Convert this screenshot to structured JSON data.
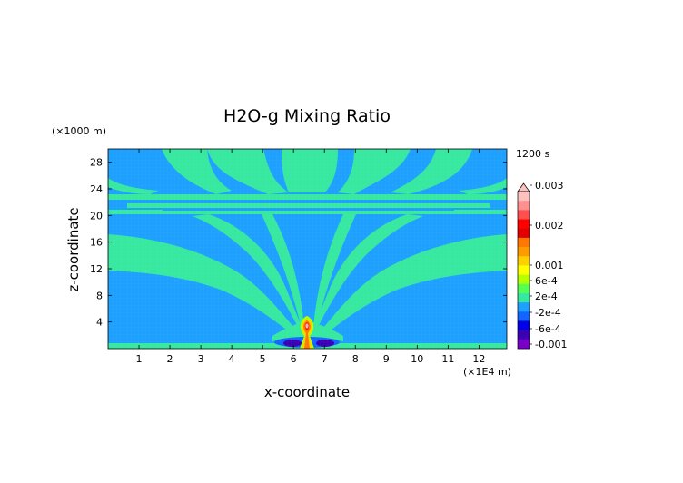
{
  "chart_data": {
    "type": "heatmap",
    "title": "H2O-g Mixing Ratio",
    "xlabel": "x-coordinate",
    "ylabel": "z-coordinate",
    "x_unit": "(×1E4 m)",
    "y_unit": "(×1000 m)",
    "time_label": "1200 s",
    "xlim": [
      0,
      12.9
    ],
    "ylim": [
      0,
      30
    ],
    "x_ticks": [
      "1",
      "2",
      "3",
      "4",
      "5",
      "6",
      "7",
      "8",
      "9",
      "10",
      "11",
      "12"
    ],
    "y_ticks": [
      "4",
      "8",
      "12",
      "16",
      "20",
      "24",
      "28"
    ],
    "colorbar": {
      "labels": [
        "0.003",
        "0.002",
        "0.001",
        "6e-4",
        "2e-4",
        "-2e-4",
        "-6e-4",
        "-0.001"
      ],
      "colors": [
        "#ffc0c0",
        "#ff9090",
        "#ff5050",
        "#ff0000",
        "#e00000",
        "#ff7800",
        "#ff9a00",
        "#ffd000",
        "#ffff00",
        "#b4ff00",
        "#54ff54",
        "#36e8a0",
        "#1ea0ff",
        "#1464ff",
        "#0000e6",
        "#3c00b4",
        "#7800c8"
      ]
    },
    "field_description_values": {
      "background": -0.0002,
      "plume_band": 0.0002,
      "plume_core_max": 0.0015,
      "source_min": -0.0008
    }
  }
}
